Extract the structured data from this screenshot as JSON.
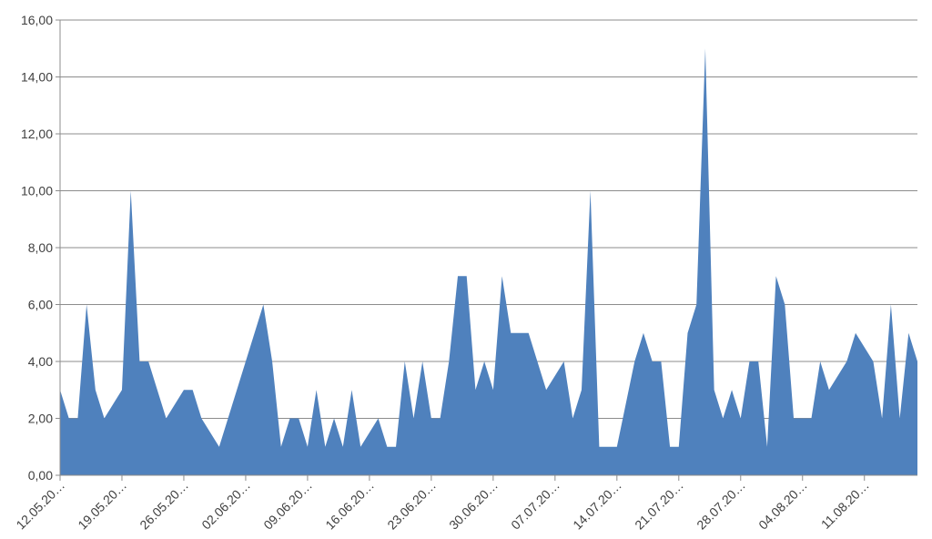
{
  "chart_data": {
    "type": "area",
    "title": "",
    "xlabel": "",
    "ylabel": "",
    "ylim": [
      0,
      16
    ],
    "y_ticks": [
      "0,00",
      "2,00",
      "4,00",
      "6,00",
      "8,00",
      "10,00",
      "12,00",
      "14,00",
      "16,00"
    ],
    "x_tick_labels": [
      "12.05.20…",
      "19.05.20…",
      "26.05.20…",
      "02.06.20…",
      "09.06.20…",
      "16.06.20…",
      "23.06.20…",
      "30.06.20…",
      "07.07.20…",
      "14.07.20…",
      "21.07.20…",
      "28.07.20…",
      "04.08.20…",
      "11.08.20…"
    ],
    "grid": true,
    "legend": "none",
    "series": [
      {
        "color": "#4f81bd",
        "values": [
          3,
          2,
          2,
          6,
          3,
          2,
          2.5,
          3,
          10,
          4,
          4,
          3,
          2,
          2.5,
          3,
          3,
          2,
          1.5,
          1,
          2,
          3,
          4,
          5,
          6,
          4,
          1,
          2,
          2,
          1,
          3,
          1,
          2,
          1,
          3,
          1,
          1.5,
          2,
          1,
          1,
          4,
          2,
          4,
          2,
          2,
          4,
          7,
          7,
          3,
          4,
          3,
          7,
          5,
          5,
          5,
          4,
          3,
          3.5,
          4,
          2,
          3,
          10,
          1,
          1,
          1,
          2.5,
          4,
          5,
          4,
          4,
          1,
          1,
          5,
          6,
          15,
          3,
          2,
          3,
          2,
          4,
          4,
          1,
          7,
          6,
          2,
          2,
          2,
          4,
          3,
          3.5,
          4,
          5,
          4.5,
          4,
          2,
          6,
          2,
          5,
          4
        ]
      }
    ]
  }
}
